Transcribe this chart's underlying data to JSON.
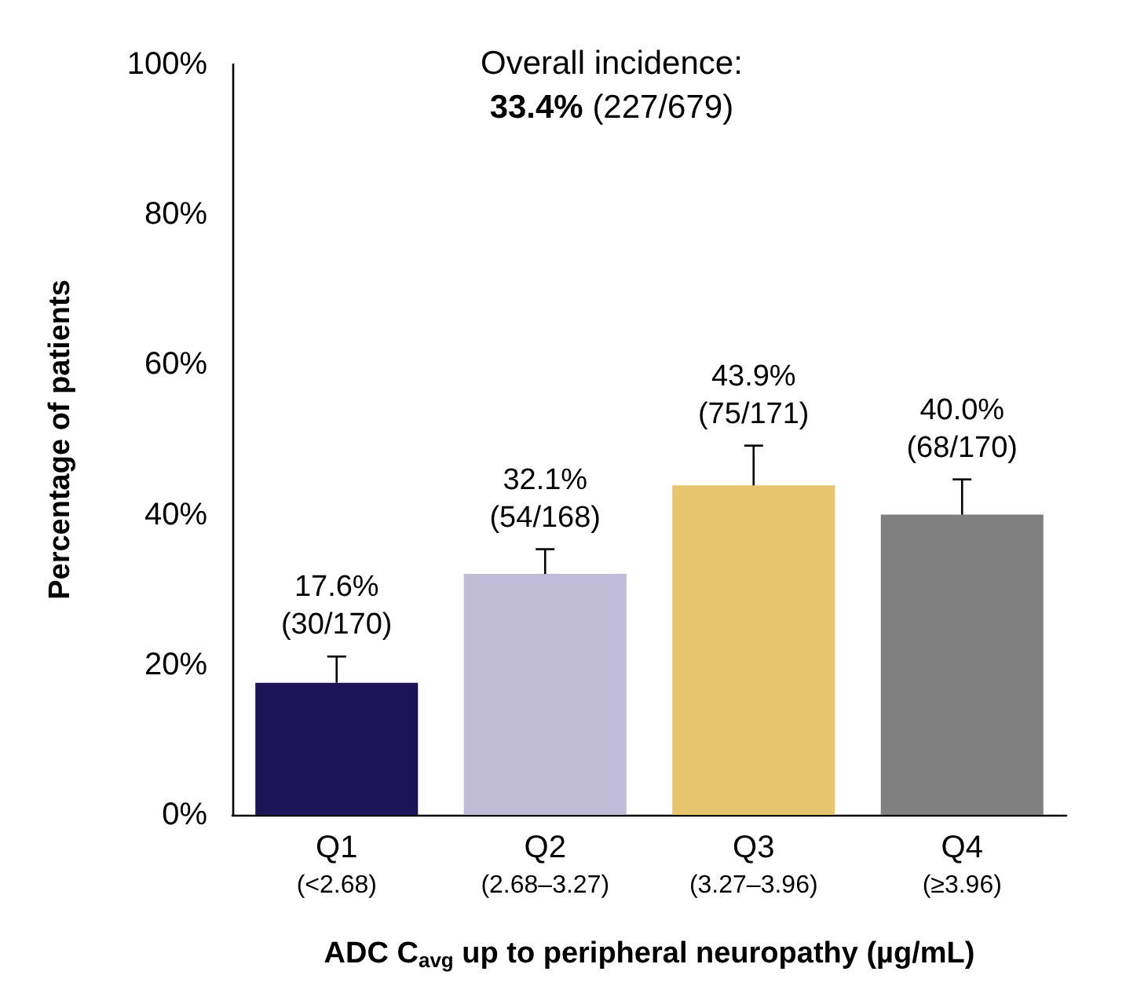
{
  "chart_data": {
    "type": "bar",
    "ylabel": "Percentage of patients",
    "xlabel": "ADC C$_{avg}$ up to peripheral neuropathy (µg/mL)",
    "categories": [
      "Q1\n(<2.68)",
      "Q2\n(2.68–3.27)",
      "Q3\n(3.27–3.96)",
      "Q4\n(≥3.96)"
    ],
    "values": [
      17.6,
      32.1,
      43.9,
      40.0
    ],
    "colors": [
      "#1c1457",
      "#c0bbd6",
      "#e9c46e",
      "#808080"
    ],
    "errors": [
      [
        17.6,
        21.1
      ],
      [
        32.1,
        35.4
      ],
      [
        43.9,
        49.2
      ],
      [
        40.0,
        44.7
      ]
    ],
    "value_labels": [
      "17.6%\n(30/170)",
      "32.1%\n(54/168)",
      "43.9%\n(75/171)",
      "40.0%\n(68/170)"
    ],
    "ylim": [
      0,
      100
    ],
    "yticks": [
      {
        "value": 0,
        "label": "0%"
      },
      {
        "value": 20,
        "label": "20%"
      },
      {
        "value": 40,
        "label": "40%"
      },
      {
        "value": 60,
        "label": "60%"
      },
      {
        "value": 80,
        "label": "80%"
      },
      {
        "value": 100,
        "label": "100%"
      }
    ],
    "annotations": [
      "Overall incidence:\n33.4% (227/679)"
    ],
    "grid": false
  }
}
